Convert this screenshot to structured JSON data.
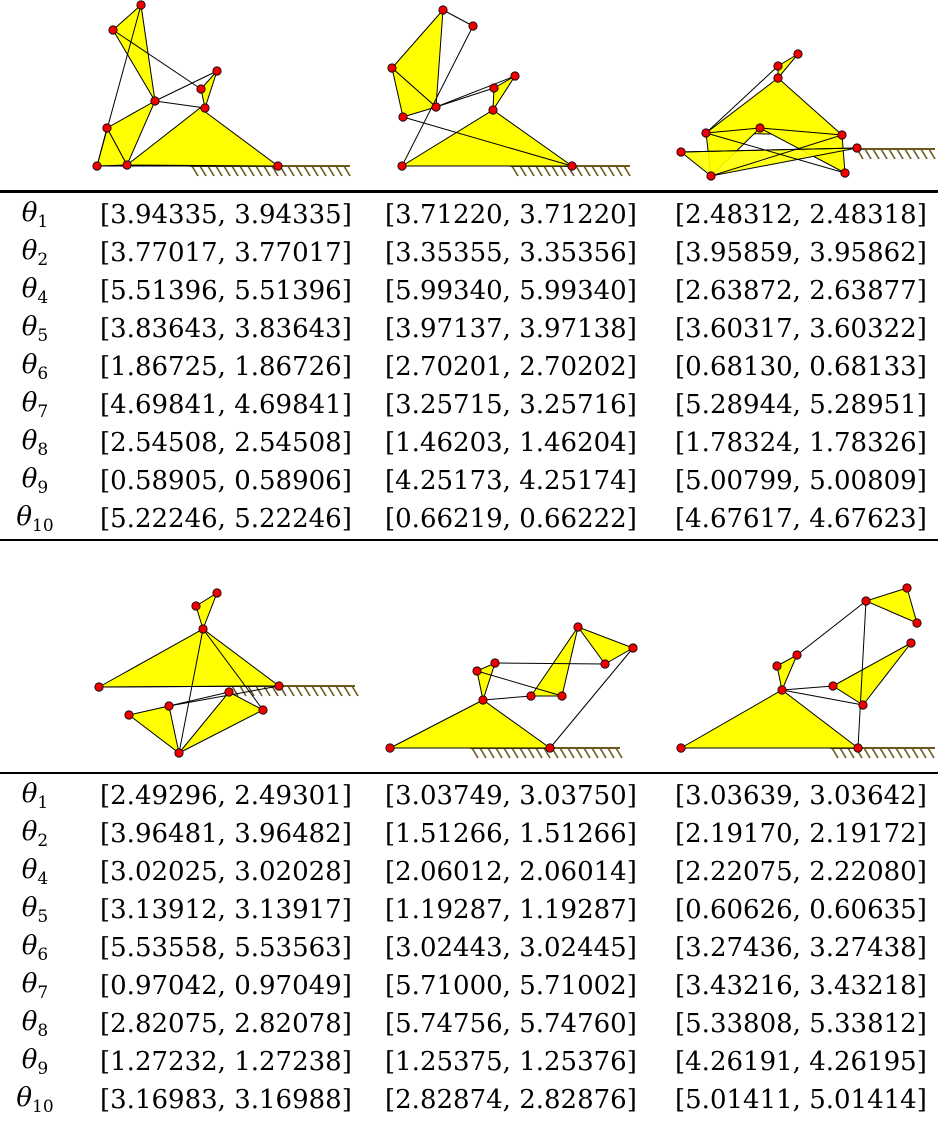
{
  "colors": {
    "fill": "#ffff00",
    "joint": "#ee0000",
    "hatch": "#6b5a1e",
    "line": "#000000"
  },
  "blocks": [
    {
      "rows": [
        {
          "sym": "θ",
          "sub": "1",
          "vals": [
            "[3.94335, 3.94335]",
            "[3.71220, 3.71220]",
            "[2.48312, 2.48318]"
          ]
        },
        {
          "sym": "θ",
          "sub": "2",
          "vals": [
            "[3.77017, 3.77017]",
            "[3.35355, 3.35356]",
            "[3.95859, 3.95862]"
          ]
        },
        {
          "sym": "θ",
          "sub": "4",
          "vals": [
            "[5.51396, 5.51396]",
            "[5.99340, 5.99340]",
            "[2.63872, 2.63877]"
          ]
        },
        {
          "sym": "θ",
          "sub": "5",
          "vals": [
            "[3.83643, 3.83643]",
            "[3.97137, 3.97138]",
            "[3.60317, 3.60322]"
          ]
        },
        {
          "sym": "θ",
          "sub": "6",
          "vals": [
            "[1.86725, 1.86726]",
            "[2.70201, 2.70202]",
            "[0.68130, 0.68133]"
          ]
        },
        {
          "sym": "θ",
          "sub": "7",
          "vals": [
            "[4.69841, 4.69841]",
            "[3.25715, 3.25716]",
            "[5.28944, 5.28951]"
          ]
        },
        {
          "sym": "θ",
          "sub": "8",
          "vals": [
            "[2.54508, 2.54508]",
            "[1.46203, 1.46204]",
            "[1.78324, 1.78326]"
          ]
        },
        {
          "sym": "θ",
          "sub": "9",
          "vals": [
            "[0.58905, 0.58906]",
            "[4.25173, 4.25174]",
            "[5.00799, 5.00809]"
          ]
        },
        {
          "sym": "θ",
          "sub": "10",
          "vals": [
            "[5.22246, 5.22246]",
            "[0.66219, 0.66222]",
            "[4.67617, 4.67623]"
          ]
        }
      ]
    },
    {
      "rows": [
        {
          "sym": "θ",
          "sub": "1",
          "vals": [
            "[2.49296, 2.49301]",
            "[3.03749, 3.03750]",
            "[3.03639, 3.03642]"
          ]
        },
        {
          "sym": "θ",
          "sub": "2",
          "vals": [
            "[3.96481, 3.96482]",
            "[1.51266, 1.51266]",
            "[2.19170, 2.19172]"
          ]
        },
        {
          "sym": "θ",
          "sub": "4",
          "vals": [
            "[3.02025, 3.02028]",
            "[2.06012, 2.06014]",
            "[2.22075, 2.22080]"
          ]
        },
        {
          "sym": "θ",
          "sub": "5",
          "vals": [
            "[3.13912, 3.13917]",
            "[1.19287, 1.19287]",
            "[0.60626, 0.60635]"
          ]
        },
        {
          "sym": "θ",
          "sub": "6",
          "vals": [
            "[5.53558, 5.53563]",
            "[3.02443, 3.02445]",
            "[3.27436, 3.27438]"
          ]
        },
        {
          "sym": "θ",
          "sub": "7",
          "vals": [
            "[0.97042, 0.97049]",
            "[5.71000, 5.71002]",
            "[3.43216, 3.43218]"
          ]
        },
        {
          "sym": "θ",
          "sub": "8",
          "vals": [
            "[2.82075, 2.82078]",
            "[5.74756, 5.74760]",
            "[5.33808, 5.33812]"
          ]
        },
        {
          "sym": "θ",
          "sub": "9",
          "vals": [
            "[1.27232, 1.27238]",
            "[1.25375, 1.25376]",
            "[4.26191, 4.26195]"
          ]
        },
        {
          "sym": "θ",
          "sub": "10",
          "vals": [
            "[3.16983, 3.16988]",
            "[2.82874, 2.82876]",
            "[5.01411, 5.01414]"
          ]
        }
      ]
    }
  ]
}
